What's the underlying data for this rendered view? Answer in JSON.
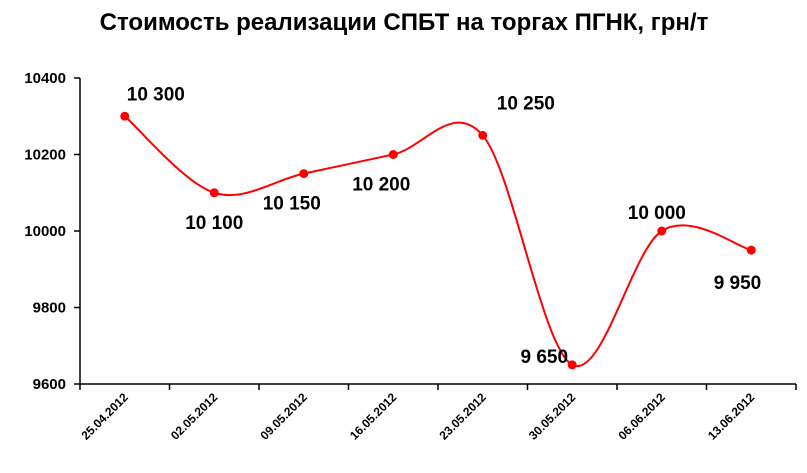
{
  "chart_data": {
    "type": "line",
    "title": "Стоимость реализации СПБТ на торгах ПГНК, грн/т",
    "categories": [
      "25.04.2012",
      "02.05.2012",
      "09.05.2012",
      "16.05.2012",
      "23.05.2012",
      "30.05.2012",
      "06.06.2012",
      "13.06.2012"
    ],
    "series": [
      {
        "values": [
          10300,
          10100,
          10150,
          10200,
          10250,
          9650,
          10000,
          9950
        ],
        "data_labels": [
          "10 300",
          "10 100",
          "10 150",
          "10 200",
          "10 250",
          "9 650",
          "10 000",
          "9 950"
        ]
      }
    ],
    "ylim": [
      9600,
      10400
    ],
    "yticks": [
      9600,
      9800,
      10000,
      10200,
      10400
    ],
    "ytick_labels": [
      "9600",
      "9800",
      "10000",
      "10200",
      "10400"
    ],
    "smooth": true,
    "grid": false,
    "line_color": "#ff0000",
    "marker_color": "#ff0000"
  }
}
